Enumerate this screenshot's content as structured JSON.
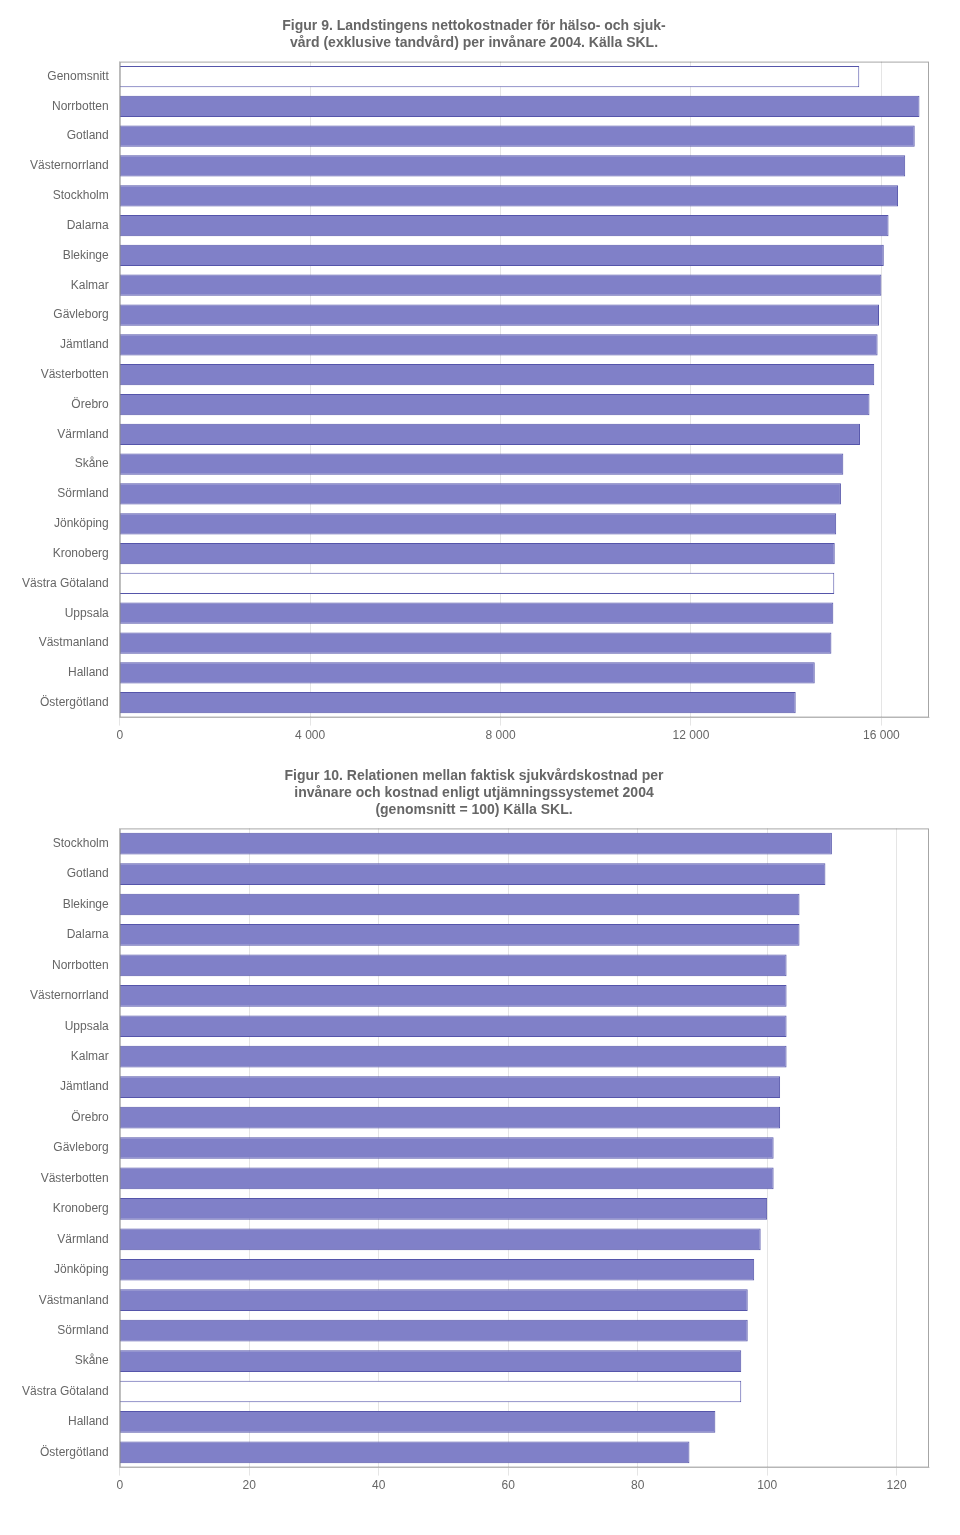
{
  "chart_data": [
    {
      "type": "bar",
      "orientation": "horizontal",
      "title": [
        "Figur 9. Landstingens nettokostnader för hälso- och sjuk-",
        "vård (exklusive tandvård) per invånare 2004. Källa SKL."
      ],
      "categories": [
        "Genomsnitt",
        "Norrbotten",
        "Gotland",
        "Västernorrland",
        "Stockholm",
        "Dalarna",
        "Blekinge",
        "Kalmar",
        "Gävleborg",
        "Jämtland",
        "Västerbotten",
        "Örebro",
        "Värmland",
        "Skåne",
        "Sörmland",
        "Jönköping",
        "Kronoberg",
        "Västra Götaland",
        "Uppsala",
        "Västmanland",
        "Halland",
        "Östergötland"
      ],
      "values": [
        15535,
        16800,
        16700,
        16500,
        16350,
        16150,
        16050,
        16000,
        15950,
        15920,
        15850,
        15750,
        15550,
        15200,
        15150,
        15050,
        15020,
        15010,
        14990,
        14950,
        14600,
        14200
      ],
      "colors": [
        "#ffffff",
        "#8080c8",
        "#8080c8",
        "#8080c8",
        "#8080c8",
        "#8080c8",
        "#8080c8",
        "#8080c8",
        "#8080c8",
        "#8080c8",
        "#8080c8",
        "#8080c8",
        "#8080c8",
        "#8080c8",
        "#8080c8",
        "#8080c8",
        "#8080c8",
        "#ffffff",
        "#8080c8",
        "#8080c8",
        "#8080c8",
        "#8080c8"
      ],
      "xlim": [
        0,
        17000
      ],
      "xticks": [
        0,
        {
          "value": 4000,
          "label": "4 000"
        },
        {
          "value": 8000,
          "label": "8 000"
        },
        {
          "value": 12000,
          "label": "12 000"
        },
        {
          "value": 16000,
          "label": "16 000"
        }
      ],
      "grid": true
    },
    {
      "type": "bar",
      "orientation": "horizontal",
      "title": [
        "Figur 10. Relationen mellan faktisk sjukvårdskostnad per",
        "invånare och kostnad enligt utjämningssystemet 2004",
        "(genomsnitt = 100) Källa SKL."
      ],
      "categories": [
        "Stockholm",
        "Gotland",
        "Blekinge",
        "Dalarna",
        "Norrbotten",
        "Västernorrland",
        "Uppsala",
        "Kalmar",
        "Jämtland",
        "Örebro",
        "Gävleborg",
        "Västerbotten",
        "Kronoberg",
        "Värmland",
        "Jönköping",
        "Västmanland",
        "Sörmland",
        "Skåne",
        "Västra Götaland",
        "Halland",
        "Östergötland"
      ],
      "values": [
        110,
        109,
        105,
        105,
        103,
        103,
        103,
        103,
        102,
        102,
        101,
        101,
        100,
        99,
        98,
        97,
        97,
        96,
        96,
        92,
        88
      ],
      "colors": [
        "#8080c8",
        "#8080c8",
        "#8080c8",
        "#8080c8",
        "#8080c8",
        "#8080c8",
        "#8080c8",
        "#8080c8",
        "#8080c8",
        "#8080c8",
        "#8080c8",
        "#8080c8",
        "#8080c8",
        "#8080c8",
        "#8080c8",
        "#8080c8",
        "#8080c8",
        "#8080c8",
        "#ffffff",
        "#8080c8",
        "#8080c8"
      ],
      "xlim": [
        0,
        125
      ],
      "xticks": [
        0,
        20,
        40,
        60,
        80,
        100,
        120
      ],
      "grid": true
    }
  ]
}
